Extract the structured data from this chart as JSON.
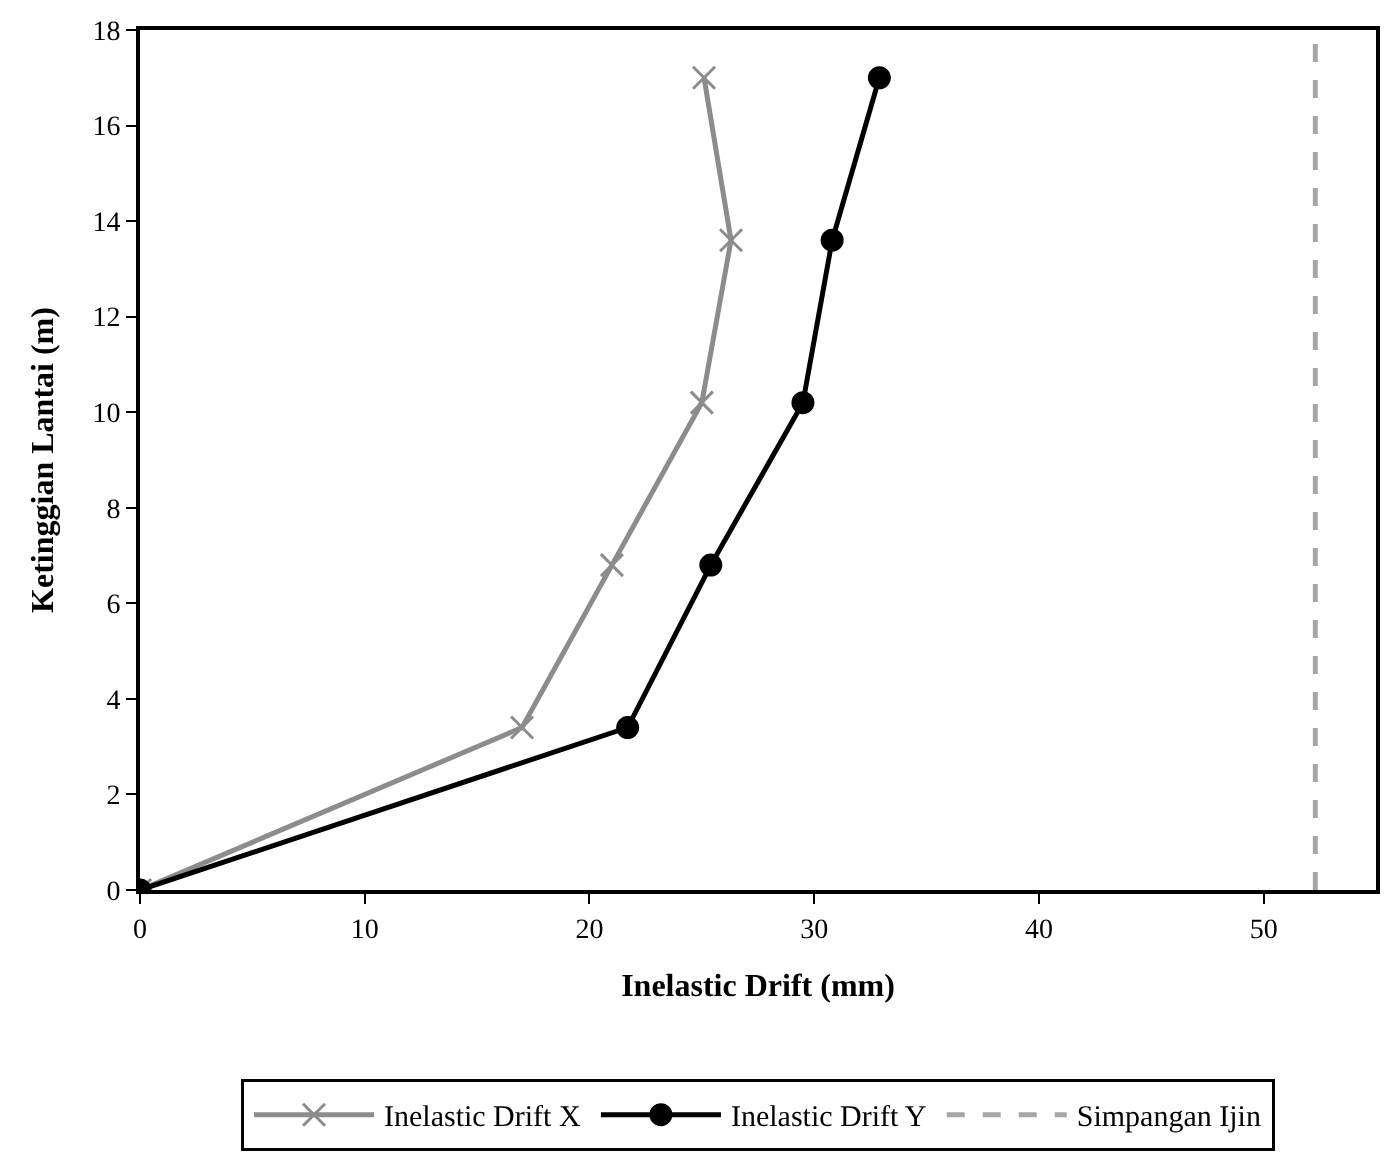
{
  "chart_data": {
    "type": "line",
    "xlabel": "Inelastic Drift (mm)",
    "ylabel": "Ketinggian Lantai (m)",
    "series": [
      {
        "name": "Inelastic Drift X",
        "color": "#8c8c8c",
        "marker": "cross",
        "x": [
          0,
          17.0,
          21.0,
          25.0,
          26.3,
          25.1
        ],
        "values": [
          0,
          3.4,
          6.8,
          10.2,
          13.6,
          17
        ]
      },
      {
        "name": "Inelastic Drift Y",
        "color": "#000000",
        "marker": "circle",
        "x": [
          0,
          21.7,
          25.4,
          29.5,
          30.8,
          32.9
        ],
        "values": [
          0,
          3.4,
          6.8,
          10.2,
          13.6,
          17
        ]
      }
    ],
    "ref_lines": [
      {
        "axis": "x",
        "value": 52.3,
        "label": "Simpangan Ijin",
        "color": "#a6a6a6",
        "line_style": "dashed"
      }
    ],
    "xlim": [
      0,
      55
    ],
    "xticks": [
      0,
      10,
      20,
      30,
      40,
      50
    ],
    "ylim": [
      0,
      18
    ],
    "yticks": [
      0,
      2,
      4,
      6,
      8,
      10,
      12,
      14,
      16,
      18
    ],
    "legend": "bottom",
    "line_style": "solid"
  }
}
